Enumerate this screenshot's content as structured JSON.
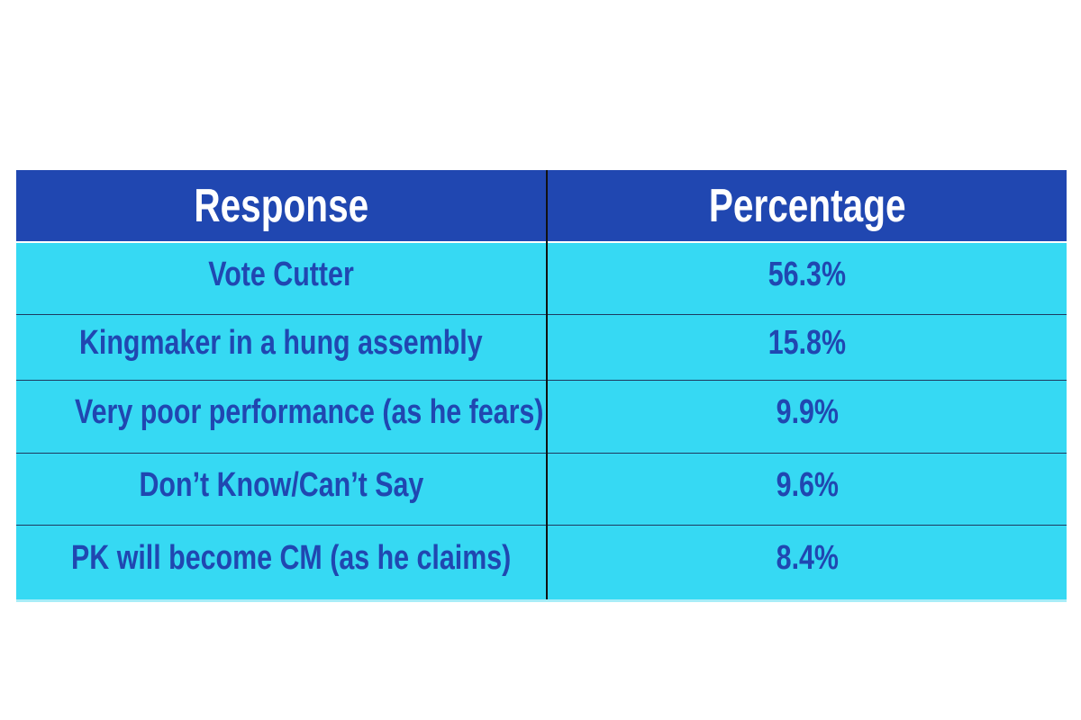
{
  "chart_data": {
    "type": "table",
    "columns": [
      "Response",
      "Percentage"
    ],
    "rows": [
      {
        "response": "Vote Cutter",
        "percentage": "56.3%",
        "value": 56.3
      },
      {
        "response": "Kingmaker in a hung assembly",
        "percentage": "15.8%",
        "value": 15.8
      },
      {
        "response": "Very poor performance (as he fears)",
        "percentage": "9.9%",
        "value": 9.9
      },
      {
        "response": "Don’t Know/Can’t Say",
        "percentage": "9.6%",
        "value": 9.6
      },
      {
        "response": "PK will become CM (as he claims)",
        "percentage": "8.4%",
        "value": 8.4
      }
    ]
  },
  "colors": {
    "header_background": "#2047b1",
    "header_text": "#ffffff",
    "row_background": "#36d9f3",
    "row_text": "#2047b1",
    "divider": "#111111"
  }
}
